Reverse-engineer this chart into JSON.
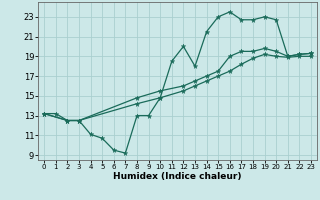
{
  "xlabel": "Humidex (Indice chaleur)",
  "xlim": [
    -0.5,
    23.5
  ],
  "ylim": [
    8.5,
    24.5
  ],
  "xticks": [
    0,
    1,
    2,
    3,
    4,
    5,
    6,
    7,
    8,
    9,
    10,
    11,
    12,
    13,
    14,
    15,
    16,
    17,
    18,
    19,
    20,
    21,
    22,
    23
  ],
  "yticks": [
    9,
    11,
    13,
    15,
    17,
    19,
    21,
    23
  ],
  "bg_color": "#cce8e8",
  "grid_color": "#aacfcf",
  "line_color": "#1a6b5a",
  "line1_x": [
    0,
    1,
    2,
    3,
    4,
    5,
    6,
    7,
    8,
    9,
    10,
    11,
    12,
    13,
    14,
    15,
    16,
    17,
    18,
    19,
    20,
    21,
    22,
    23
  ],
  "line1_y": [
    13.2,
    13.2,
    12.5,
    12.5,
    11.1,
    10.7,
    9.5,
    9.2,
    13.0,
    13.0,
    14.8,
    18.5,
    20.0,
    18.0,
    21.5,
    23.0,
    23.5,
    22.7,
    22.7,
    23.0,
    22.7,
    19.0,
    19.2,
    19.3
  ],
  "line2_x": [
    0,
    2,
    3,
    8,
    10,
    12,
    13,
    14,
    15,
    16,
    17,
    18,
    19,
    20,
    21,
    22,
    23
  ],
  "line2_y": [
    13.2,
    12.5,
    12.5,
    14.8,
    15.5,
    16.0,
    16.5,
    17.0,
    17.5,
    19.0,
    19.5,
    19.5,
    19.8,
    19.5,
    19.0,
    19.2,
    19.3
  ],
  "line3_x": [
    0,
    2,
    3,
    8,
    10,
    12,
    13,
    14,
    15,
    16,
    17,
    18,
    19,
    20,
    21,
    22,
    23
  ],
  "line3_y": [
    13.2,
    12.5,
    12.5,
    14.2,
    14.8,
    15.5,
    16.0,
    16.5,
    17.0,
    17.5,
    18.2,
    18.8,
    19.2,
    19.0,
    18.9,
    19.0,
    19.0
  ]
}
